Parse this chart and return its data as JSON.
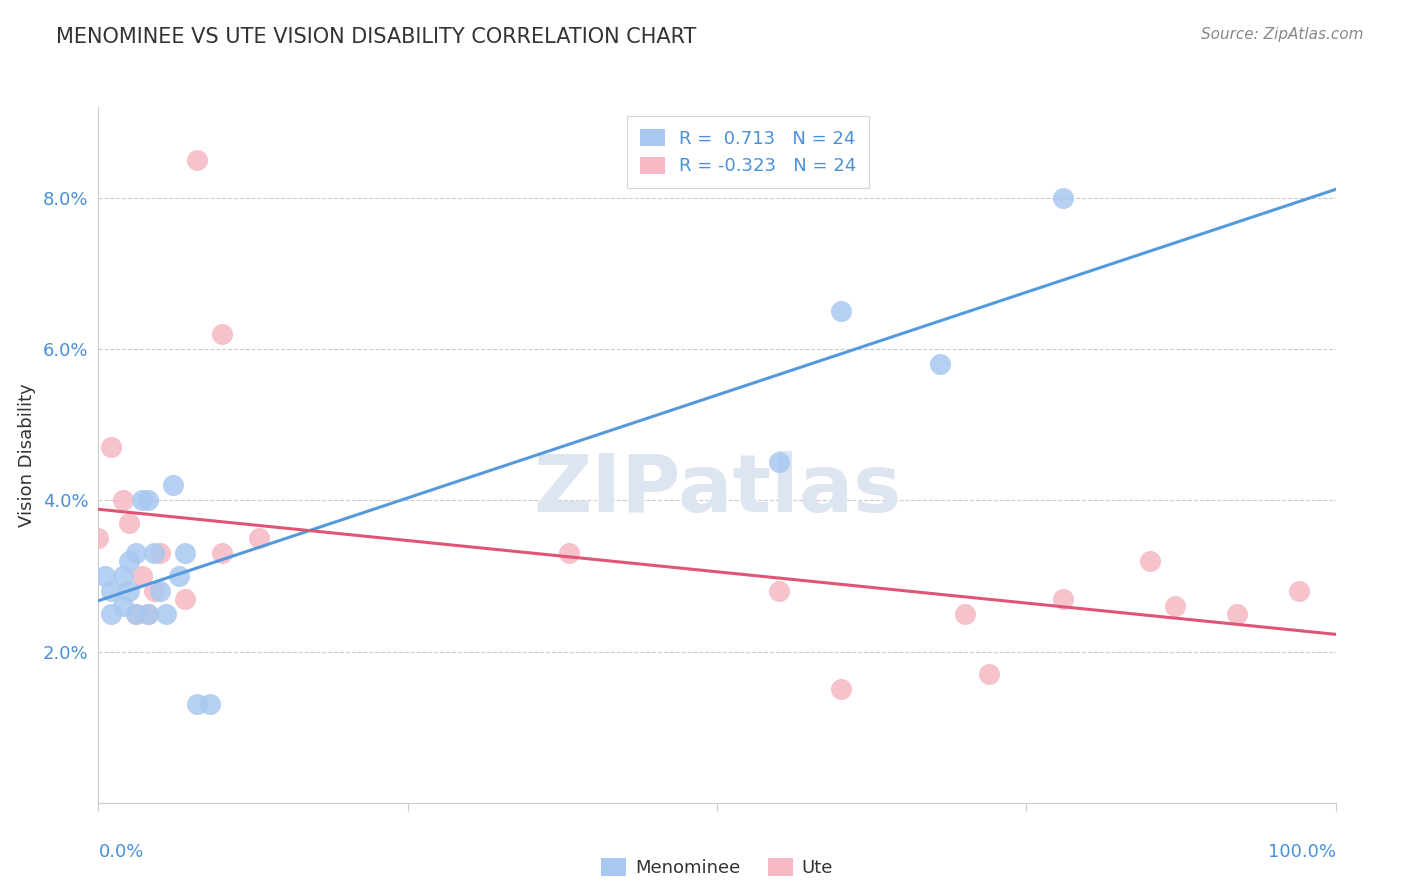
{
  "title": "MENOMINEE VS UTE VISION DISABILITY CORRELATION CHART",
  "source": "Source: ZipAtlas.com",
  "ylabel": "Vision Disability",
  "xlim": [
    0.0,
    1.0
  ],
  "ylim": [
    0.0,
    0.092
  ],
  "yticks": [
    0.02,
    0.04,
    0.06,
    0.08
  ],
  "ytick_labels": [
    "2.0%",
    "4.0%",
    "6.0%",
    "8.0%"
  ],
  "menominee_R": 0.713,
  "menominee_N": 24,
  "ute_R": -0.323,
  "ute_N": 24,
  "menominee_scatter_color": "#a8c8f0",
  "ute_scatter_color": "#f5b8c4",
  "menominee_line_color": "#5599dd",
  "ute_line_color": "#e05575",
  "grid_color": "#cccccc",
  "spine_color": "#cccccc",
  "text_color": "#333333",
  "axis_label_color": "#4a90d9",
  "watermark_color": "#dde5f0",
  "menominee_x": [
    0.005,
    0.01,
    0.01,
    0.02,
    0.02,
    0.025,
    0.025,
    0.03,
    0.03,
    0.035,
    0.04,
    0.04,
    0.045,
    0.05,
    0.055,
    0.06,
    0.065,
    0.07,
    0.08,
    0.09,
    0.55,
    0.6,
    0.68,
    0.78
  ],
  "menominee_y": [
    0.03,
    0.028,
    0.025,
    0.026,
    0.03,
    0.032,
    0.028,
    0.025,
    0.033,
    0.04,
    0.025,
    0.04,
    0.033,
    0.028,
    0.025,
    0.042,
    0.03,
    0.033,
    0.013,
    0.013,
    0.045,
    0.065,
    0.058,
    0.08
  ],
  "ute_x": [
    0.0,
    0.01,
    0.02,
    0.025,
    0.03,
    0.035,
    0.04,
    0.045,
    0.05,
    0.07,
    0.08,
    0.1,
    0.1,
    0.13,
    0.38,
    0.55,
    0.6,
    0.7,
    0.72,
    0.78,
    0.85,
    0.87,
    0.92,
    0.97
  ],
  "ute_y": [
    0.035,
    0.047,
    0.04,
    0.037,
    0.025,
    0.03,
    0.025,
    0.028,
    0.033,
    0.027,
    0.085,
    0.062,
    0.033,
    0.035,
    0.033,
    0.028,
    0.015,
    0.025,
    0.017,
    0.027,
    0.032,
    0.026,
    0.025,
    0.028
  ]
}
